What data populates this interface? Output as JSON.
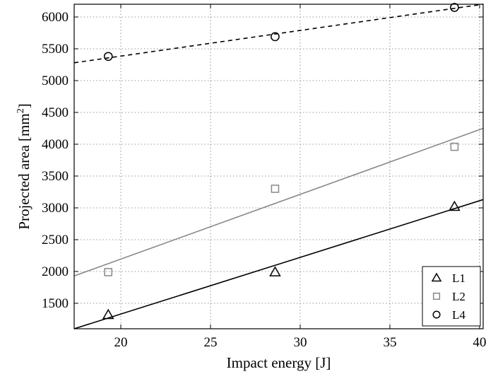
{
  "chart_data": {
    "type": "scatter",
    "xlabel": "Impact energy [J]",
    "ylabel_main": "Projected area [mm",
    "ylabel_sup": "2",
    "ylabel_end": "]",
    "xlim": [
      17.4,
      40.2
    ],
    "ylim": [
      1100,
      6200
    ],
    "xticks": [
      20,
      25,
      30,
      35,
      40
    ],
    "yticks": [
      1500,
      2000,
      2500,
      3000,
      3500,
      4000,
      4500,
      5000,
      5500,
      6000
    ],
    "grid": "dotted",
    "legend_position": "bottom-right",
    "series": [
      {
        "name": "L1",
        "marker": "triangle",
        "marker_color": "#000000",
        "x": [
          19.3,
          28.6,
          38.6
        ],
        "y": [
          1320,
          1990,
          3020
        ],
        "fit": {
          "style": "solid",
          "color": "#000000",
          "y_at_xmin": 1100,
          "y_at_xmax": 3130
        }
      },
      {
        "name": "L2",
        "marker": "square",
        "marker_color": "#888888",
        "x": [
          19.3,
          28.6,
          38.6
        ],
        "y": [
          1990,
          3300,
          3960
        ],
        "fit": {
          "style": "solid",
          "color": "#888888",
          "y_at_xmin": 1930,
          "y_at_xmax": 4250
        }
      },
      {
        "name": "L4",
        "marker": "circle",
        "marker_color": "#000000",
        "x": [
          19.3,
          28.6,
          38.6
        ],
        "y": [
          5380,
          5690,
          6150
        ],
        "fit": {
          "style": "dashed",
          "color": "#000000",
          "y_at_xmin": 5280,
          "y_at_xmax": 6200
        }
      }
    ]
  }
}
